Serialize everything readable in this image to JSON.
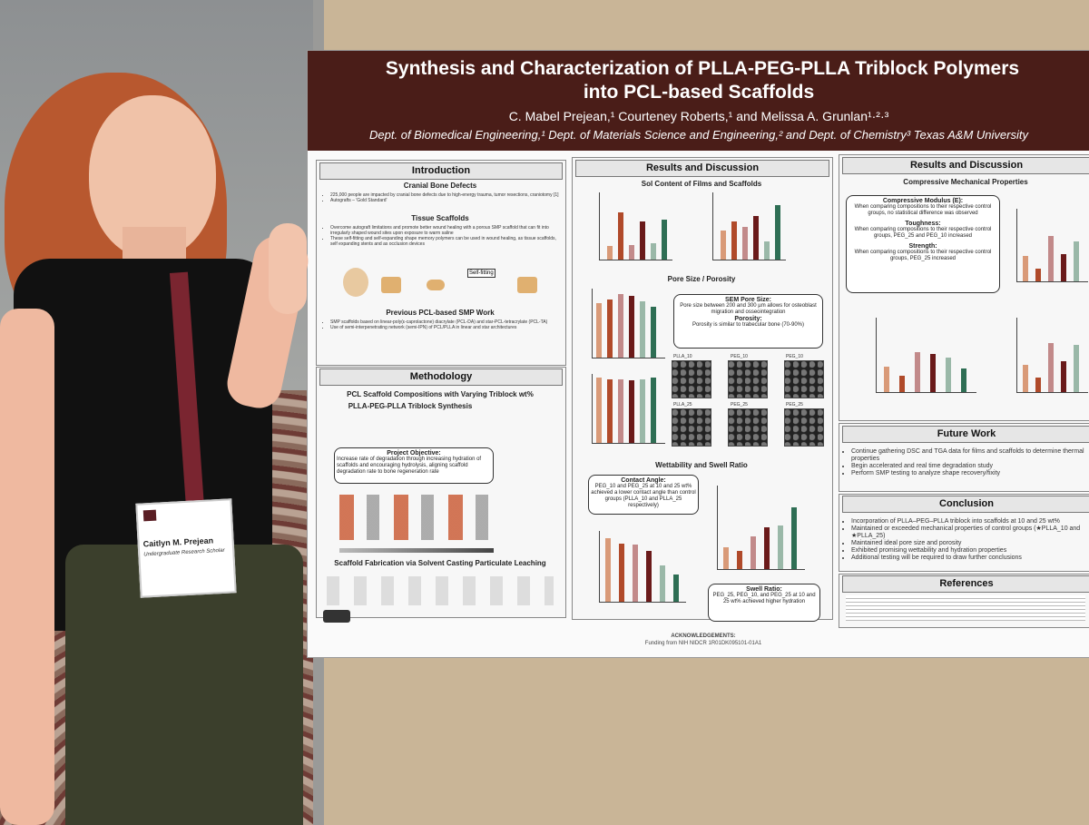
{
  "poster": {
    "title_lines": [
      "Synthesis and Characterization of PLLA-PEG-PLLA Triblock Polymers",
      "into PCL-based Scaffolds"
    ],
    "authors": "C. Mabel Prejean,¹ Courteney Roberts,¹ and Melissa A. Grunlan¹·²·³",
    "affiliations": "Dept. of Biomedical Engineering,¹ Dept. of Materials Science and Engineering,² and Dept. of Chemistry³ Texas A&M University",
    "introduction": {
      "heading": "Introduction",
      "cranial": "Cranial Bone Defects",
      "cranial_bullets": [
        "225,000 people are impacted by cranial bone defects due to high-energy trauma, tumor resections, craniotomy [1]",
        "Autografts – 'Gold Standard'"
      ],
      "tissue": "Tissue Scaffolds",
      "tissue_bullets": [
        "Overcome autograft limitations and promote better wound healing with a porous SMP scaffold that can fit into irregularly shaped wound sites upon exposure to warm saline",
        "These self-fitting and self-expanding shape memory polymers can be used in wound healing, as tissue scaffolds, self expanding stents and as occlusion devices"
      ],
      "self_fitting": "Self-fitting",
      "previous": "Previous PCL-based SMP Work",
      "previous_bullets": [
        "SMP scaffolds based on linear-poly(ε-caprolactone) diacrylate (PCL-DA) and star-PCL-tetracrylate (PCL-TA)",
        "Use of semi-interpenetrating network (semi-IPN) of PCL/PLLA in linear and star architectures"
      ]
    },
    "methodology": {
      "heading": "Methodology",
      "compositions": "PCL Scaffold Compositions with Varying Triblock wt%",
      "synthesis": "PLLA-PEG-PLLA Triblock Synthesis",
      "objective_title": "Project Objective:",
      "objective": "Increase rate of degradation through increasing hydration of scaffolds and encouraging hydrolysis, aligning scaffold degradation rate to bone regeneration rate",
      "fabrication": "Scaffold Fabrication via Solvent Casting Particulate Leaching"
    },
    "results_1": {
      "heading": "Results and Discussion",
      "sol": "Sol Content of Films and Scaffolds",
      "pore": "Pore Size / Porosity",
      "sem_title": "SEM Pore Size:",
      "sem_text": "Pore size between 200 and 300 µm allows for osteoblast migration and osseointegration",
      "porosity_title": "Porosity:",
      "porosity_text": "Porosity is similar to trabecular bone (70-90%)",
      "sem_labels": [
        "PLLA_10",
        "PEG_10",
        "PEG_10",
        "PLLA_25",
        "PEG_25",
        "PEG_25"
      ],
      "wettability": "Wettability and Swell Ratio",
      "contact_title": "Contact Angle:",
      "contact_text": "PEG_10 and PEG_25 at 10 and 25 wt% achieved a lower contact angle than control groups (PLLA_10 and PLLA_25 respectively)",
      "swell_title": "Swell Ratio:",
      "swell_text": "PEG_25, PEG_10, and PEG_25 at 10 and 25 wt% achieved higher hydration"
    },
    "results_2": {
      "heading": "Results and Discussion",
      "compressive": "Compressive Mechanical Properties",
      "modulus_title": "Compressive Modulus (E):",
      "modulus_text": "When comparing compositions to their respective control groups, no statistical difference was observed",
      "toughness_title": "Toughness:",
      "toughness_text": "When comparing compositions to their respective control groups, PEG_25 and PEG_10 increased",
      "strength_title": "Strength:",
      "strength_text": "When comparing compositions to their respective control groups, PEG_25 increased"
    },
    "future": {
      "heading": "Future Work",
      "bullets": [
        "Continue gathering DSC and TGA data for films and scaffolds to determine thermal properties",
        "Begin accelerated and real time degradation study",
        "Perform SMP testing to analyze shape recovery/fixity"
      ]
    },
    "conclusion": {
      "heading": "Conclusion",
      "bullets": [
        "Incorporation of PLLA–PEG–PLLA triblock into scaffolds at 10 and 25 wt%",
        "Maintained or exceeded mechanical properties of control groups (★PLLA_10 and ★PLLA_25)",
        "Maintained ideal pore size and porosity",
        "Exhibited promising wettability and hydration properties",
        "Additional testing will be required to draw further conclusions"
      ]
    },
    "references": {
      "heading": "References"
    },
    "acknowledgements": {
      "heading": "ACKNOWLEDGEMENTS:",
      "text": "Funding from NIH NIDCR 1R01DK095101-01A1"
    }
  },
  "badge": {
    "name": "Caitlyn M. Prejean",
    "role": "Undergraduate Research Scholar"
  }
}
